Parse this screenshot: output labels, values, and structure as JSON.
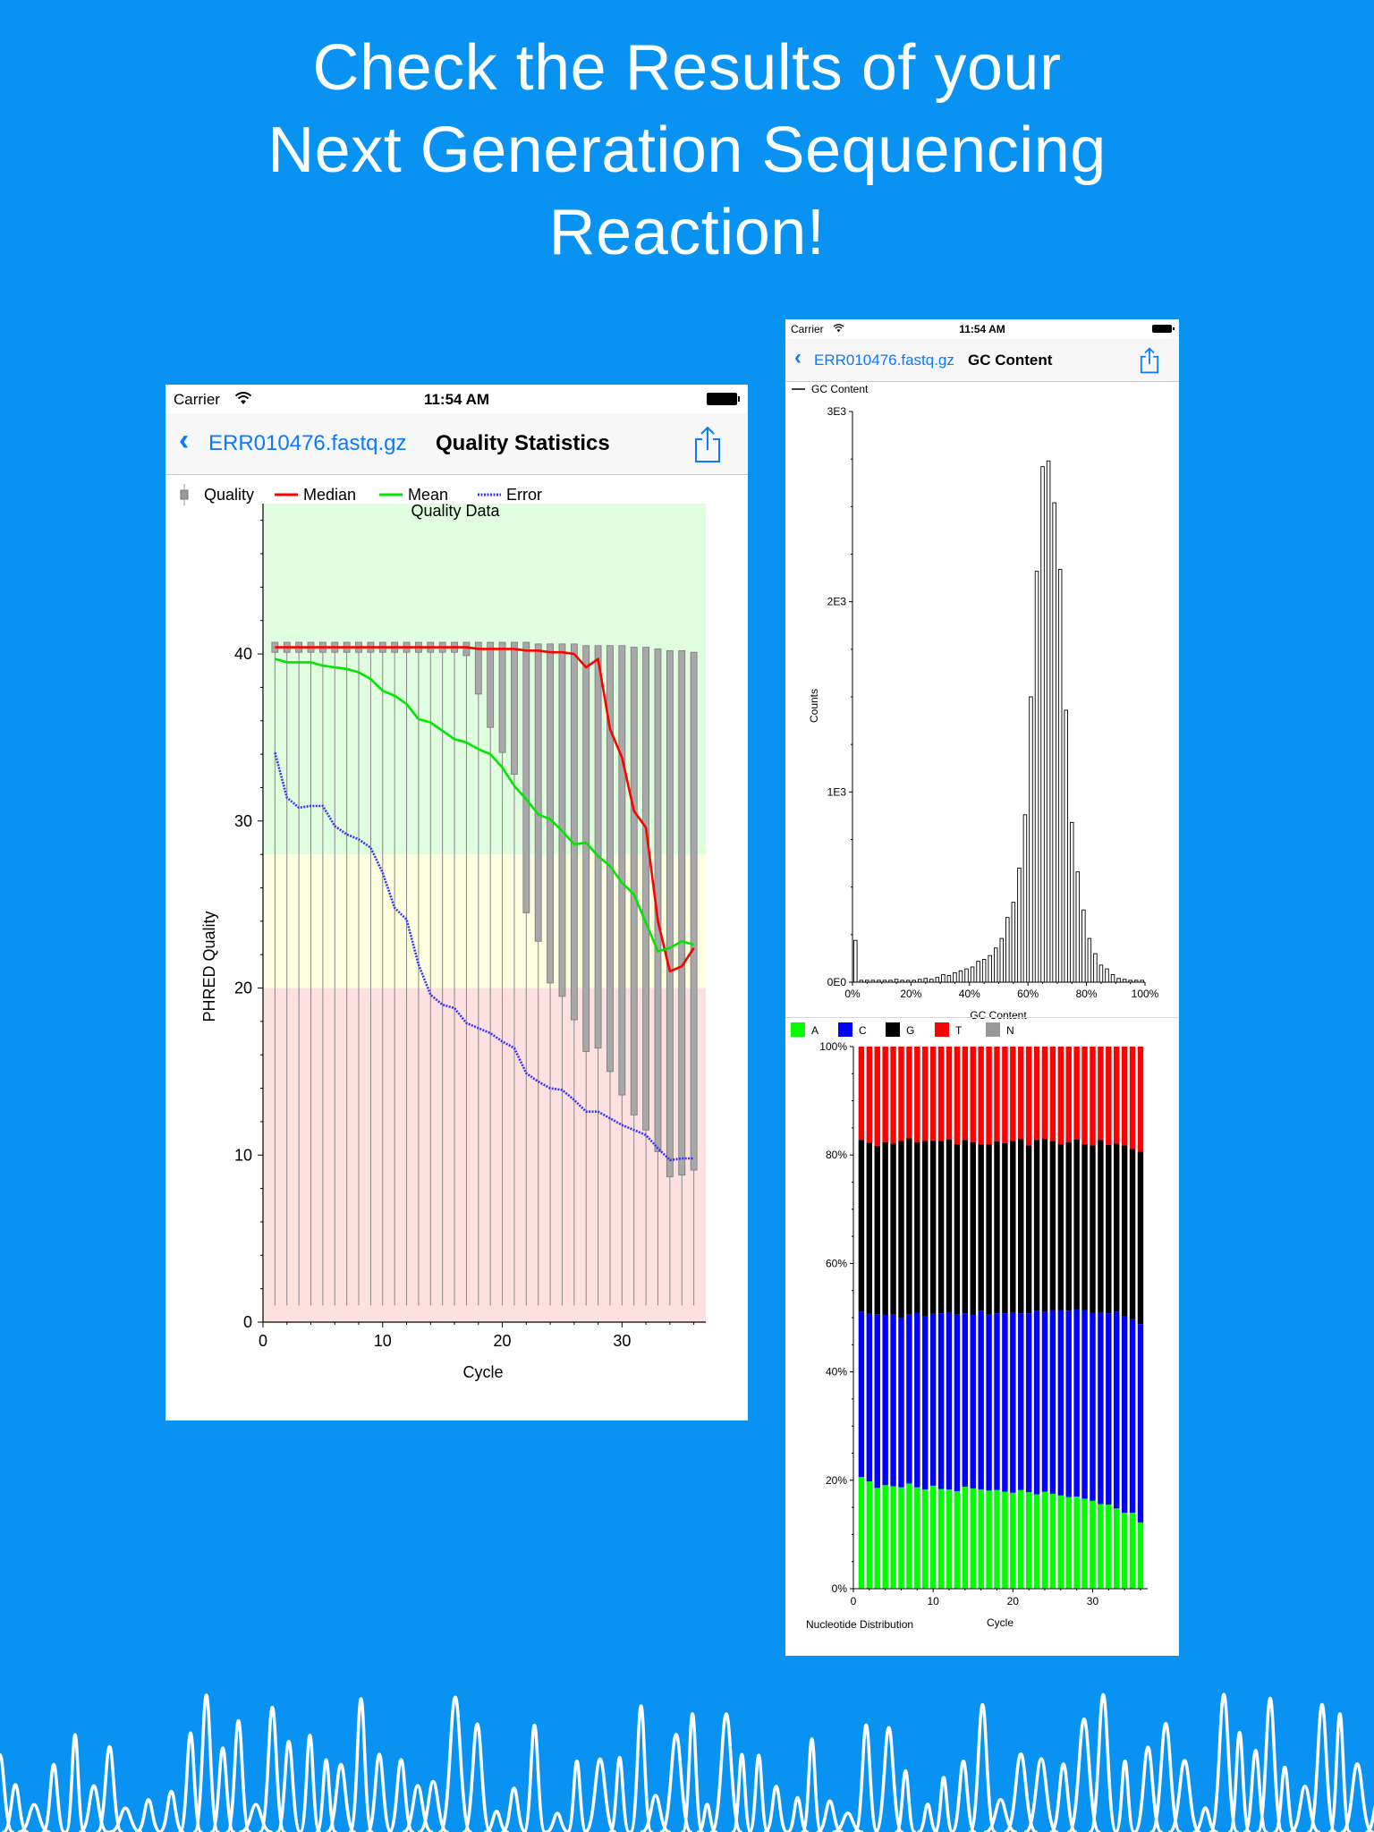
{
  "headline": [
    "Check the Results of your",
    "Next Generation Sequencing",
    "Reaction!"
  ],
  "colors": {
    "background": "#0893f2",
    "ios_blue": "#0a7aff"
  },
  "phone_left": {
    "status": {
      "carrier": "Carrier",
      "time": "11:54 AM"
    },
    "nav": {
      "back_label": "ERR010476.fastq.gz",
      "title": "Quality Statistics",
      "back_icon": "chevron-left-icon",
      "action_icon": "share-icon"
    }
  },
  "phone_right": {
    "status": {
      "carrier": "Carrier",
      "time": "11:54 AM"
    },
    "nav": {
      "back_label": "ERR010476.fastq.gz",
      "title": "GC Content",
      "back_icon": "chevron-left-icon",
      "action_icon": "share-icon"
    }
  },
  "chart_data": [
    {
      "type": "line",
      "title": "Quality Data",
      "xlabel": "Cycle",
      "ylabel": "PHRED Quality",
      "xlim": [
        0,
        37
      ],
      "ylim": [
        0,
        49
      ],
      "xticks": [
        0,
        10,
        20,
        30
      ],
      "yticks": [
        0,
        10,
        20,
        30,
        40
      ],
      "background_bands": [
        {
          "from": 0,
          "to": 20,
          "color": "#fde0e0"
        },
        {
          "from": 20,
          "to": 28,
          "color": "#fdfde0"
        },
        {
          "from": 28,
          "to": 49,
          "color": "#e0fde0"
        }
      ],
      "legend": [
        "Quality",
        "Median",
        "Mean",
        "Error"
      ],
      "legend_colors": [
        "#999999",
        "#ff0000",
        "#00e600",
        "#3333ff"
      ],
      "x": [
        1,
        2,
        3,
        4,
        5,
        6,
        7,
        8,
        9,
        10,
        11,
        12,
        13,
        14,
        15,
        16,
        17,
        18,
        19,
        20,
        21,
        22,
        23,
        24,
        25,
        26,
        27,
        28,
        29,
        30,
        31,
        32,
        33,
        34,
        35,
        36
      ],
      "box_quality": {
        "upper": [
          40.7,
          40.7,
          40.7,
          40.7,
          40.7,
          40.7,
          40.7,
          40.7,
          40.7,
          40.7,
          40.7,
          40.7,
          40.7,
          40.7,
          40.7,
          40.7,
          40.7,
          40.7,
          40.7,
          40.7,
          40.7,
          40.7,
          40.6,
          40.6,
          40.6,
          40.6,
          40.5,
          40.5,
          40.5,
          40.5,
          40.4,
          40.4,
          40.3,
          40.2,
          40.2,
          40.1
        ],
        "lower": [
          40.1,
          40.1,
          40.1,
          40.1,
          40.1,
          40.1,
          40.1,
          40.1,
          40.1,
          40.1,
          40.1,
          40.1,
          40.1,
          40.1,
          40.1,
          40.1,
          39.9,
          37.6,
          35.6,
          34.1,
          32.8,
          24.5,
          22.8,
          20.3,
          19.5,
          18.1,
          16.2,
          16.4,
          15.0,
          13.6,
          12.4,
          11.5,
          10.2,
          8.7,
          8.8,
          9.1
        ],
        "whisker_low": [
          1,
          1,
          1,
          1,
          1,
          1,
          1,
          1,
          1,
          1,
          1,
          1,
          1,
          1,
          1,
          1,
          1,
          1,
          1,
          1,
          1,
          1,
          1,
          1,
          1,
          1,
          1,
          1,
          1,
          1,
          1,
          1,
          1,
          1,
          1,
          1
        ]
      },
      "series": [
        {
          "name": "Median",
          "color": "#ff0000",
          "values": [
            40.4,
            40.4,
            40.4,
            40.4,
            40.4,
            40.4,
            40.4,
            40.4,
            40.4,
            40.4,
            40.4,
            40.4,
            40.4,
            40.4,
            40.4,
            40.4,
            40.4,
            40.3,
            40.3,
            40.3,
            40.3,
            40.2,
            40.2,
            40.1,
            40.1,
            40.0,
            39.2,
            39.7,
            35.5,
            33.8,
            30.6,
            29.6,
            24.0,
            21.0,
            21.3,
            22.4
          ]
        },
        {
          "name": "Mean",
          "color": "#00e600",
          "values": [
            39.7,
            39.5,
            39.5,
            39.5,
            39.3,
            39.2,
            39.1,
            38.9,
            38.5,
            37.8,
            37.5,
            37.0,
            36.1,
            35.9,
            35.4,
            34.9,
            34.7,
            34.3,
            34.0,
            33.2,
            32.1,
            31.3,
            30.4,
            30.1,
            29.4,
            28.6,
            28.7,
            27.9,
            27.3,
            26.3,
            25.6,
            23.9,
            22.2,
            22.4,
            22.8,
            22.6
          ]
        },
        {
          "name": "Error",
          "color": "#3333ff",
          "dashed": true,
          "values": [
            34.1,
            31.4,
            30.8,
            30.9,
            30.9,
            29.7,
            29.2,
            28.9,
            28.4,
            26.9,
            24.8,
            24.1,
            21.4,
            19.6,
            19.0,
            18.8,
            17.9,
            17.6,
            17.3,
            16.8,
            16.4,
            14.9,
            14.4,
            14.0,
            13.9,
            13.3,
            12.6,
            12.6,
            12.2,
            11.8,
            11.5,
            11.2,
            10.4,
            9.7,
            9.8,
            9.8
          ]
        }
      ]
    },
    {
      "type": "bar",
      "legend": [
        "GC Content"
      ],
      "xlabel": "GC Content",
      "ylabel": "Counts",
      "ylim": [
        0,
        3000
      ],
      "yticks": [
        0,
        1000,
        2000,
        3000
      ],
      "ytick_labels": [
        "0E0",
        "1E3",
        "2E3",
        "3E3"
      ],
      "xlim": [
        0,
        100
      ],
      "xticks": [
        0,
        20,
        40,
        60,
        80,
        100
      ],
      "xtick_labels": [
        "0%",
        "20%",
        "40%",
        "60%",
        "80%",
        "100%"
      ],
      "bin_centers": [
        1,
        3,
        5,
        7,
        9,
        11,
        13,
        15,
        17,
        19,
        21,
        23,
        25,
        27,
        29,
        31,
        33,
        35,
        37,
        39,
        41,
        43,
        45,
        47,
        49,
        51,
        53,
        55,
        57,
        59,
        61,
        63,
        65,
        67,
        69,
        71,
        73,
        75,
        77,
        79,
        81,
        83,
        85,
        87,
        89,
        91,
        93,
        95,
        97,
        99
      ],
      "values": [
        220,
        10,
        10,
        10,
        10,
        10,
        10,
        15,
        10,
        10,
        10,
        15,
        20,
        15,
        25,
        40,
        35,
        50,
        60,
        70,
        80,
        110,
        120,
        140,
        180,
        230,
        340,
        420,
        600,
        880,
        1500,
        2160,
        2710,
        2740,
        2520,
        2170,
        1430,
        840,
        580,
        380,
        230,
        150,
        90,
        70,
        40,
        20,
        15,
        10,
        10,
        10
      ]
    },
    {
      "type": "bar",
      "stacked": true,
      "title": "Nucleotide Distribution",
      "xlabel": "Cycle",
      "ylim": [
        0,
        100
      ],
      "yticks": [
        0,
        20,
        40,
        60,
        80,
        100
      ],
      "ytick_labels": [
        "0%",
        "20%",
        "40%",
        "60%",
        "80%",
        "100%"
      ],
      "xticks": [
        0,
        10,
        20,
        30
      ],
      "categories": [
        1,
        2,
        3,
        4,
        5,
        6,
        7,
        8,
        9,
        10,
        11,
        12,
        13,
        14,
        15,
        16,
        17,
        18,
        19,
        20,
        21,
        22,
        23,
        24,
        25,
        26,
        27,
        28,
        29,
        30,
        31,
        32,
        33,
        34,
        35,
        36
      ],
      "series": [
        {
          "name": "A",
          "color": "#00ff00",
          "values": [
            20.6,
            19.8,
            18.6,
            19.1,
            18.9,
            18.7,
            19.4,
            18.7,
            18.3,
            19.0,
            18.4,
            18.3,
            18.0,
            18.8,
            18.5,
            18.3,
            18.1,
            18.2,
            17.9,
            17.7,
            18.2,
            17.8,
            17.4,
            17.9,
            17.5,
            17.2,
            16.9,
            17.0,
            16.6,
            16.2,
            15.6,
            15.5,
            14.8,
            14.0,
            14.0,
            12.2
          ]
        },
        {
          "name": "C",
          "color": "#0000ff",
          "values": [
            30.5,
            30.9,
            32.0,
            31.4,
            31.7,
            31.2,
            31.2,
            32.2,
            31.9,
            31.7,
            32.4,
            32.7,
            32.6,
            32.0,
            32.0,
            33.0,
            32.5,
            32.6,
            32.9,
            33.3,
            32.6,
            33.0,
            33.9,
            33.2,
            33.9,
            34.2,
            34.4,
            34.5,
            34.8,
            34.7,
            35.4,
            35.3,
            36.3,
            36.2,
            35.7,
            36.6
          ]
        },
        {
          "name": "G",
          "color": "#000000",
          "values": [
            31.7,
            31.6,
            31.1,
            31.9,
            31.5,
            32.7,
            32.5,
            31.5,
            32.4,
            32.0,
            31.8,
            31.9,
            31.4,
            32.0,
            31.9,
            30.7,
            31.4,
            31.7,
            31.4,
            31.6,
            32.2,
            31.0,
            31.5,
            31.9,
            31.2,
            30.6,
            31.1,
            31.4,
            30.6,
            30.9,
            31.8,
            31.1,
            31.0,
            31.6,
            31.4,
            31.8
          ]
        },
        {
          "name": "T",
          "color": "#ff0000",
          "values": [
            17.2,
            17.7,
            18.3,
            17.6,
            17.9,
            17.4,
            16.9,
            17.6,
            17.4,
            17.3,
            17.4,
            17.1,
            18.0,
            17.2,
            17.6,
            18.0,
            18.0,
            17.5,
            17.8,
            17.4,
            17.0,
            18.2,
            17.2,
            17.0,
            17.4,
            18.0,
            17.6,
            17.1,
            18.0,
            18.2,
            17.2,
            18.1,
            17.9,
            18.2,
            18.9,
            19.4
          ]
        },
        {
          "name": "N",
          "color": "#999999",
          "values": [
            0,
            0,
            0,
            0,
            0,
            0,
            0,
            0,
            0,
            0,
            0,
            0,
            0,
            0,
            0,
            0,
            0,
            0,
            0,
            0,
            0,
            0,
            0,
            0,
            0,
            0,
            0,
            0,
            0,
            0,
            0,
            0,
            0,
            0,
            0,
            0
          ]
        }
      ]
    }
  ]
}
